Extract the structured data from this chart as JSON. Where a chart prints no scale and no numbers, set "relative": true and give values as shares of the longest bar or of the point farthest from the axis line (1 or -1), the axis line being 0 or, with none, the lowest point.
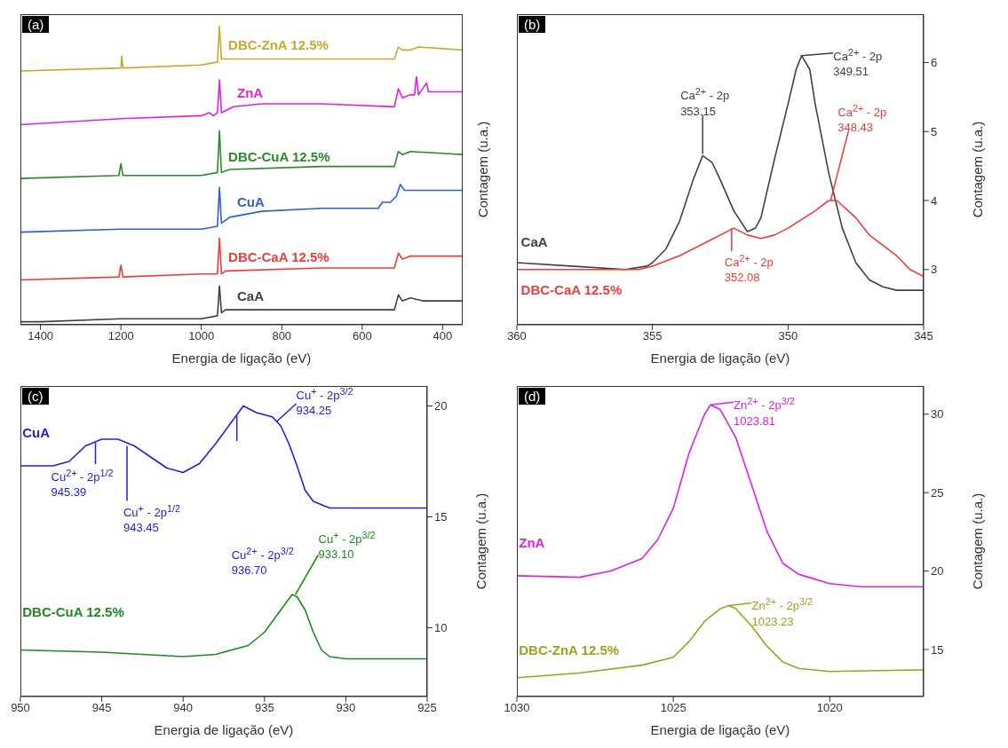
{
  "chart_data": [
    {
      "type": "line",
      "title": "(a)",
      "xlabel": "Energia de ligação (eV)",
      "ylabel": "Contagem (u.a.)",
      "relative": true,
      "xlim": [
        1450,
        350
      ],
      "xticks": [
        1400,
        1200,
        1000,
        800,
        600,
        400
      ],
      "series": [
        {
          "name": "CaA",
          "color": "#404040",
          "x": [
            1450,
            1400,
            1200,
            1000,
            960,
            955,
            950,
            940,
            700,
            520,
            510,
            500,
            480,
            450,
            350
          ],
          "values": [
            0.01,
            0.01,
            0.02,
            0.02,
            0.03,
            0.13,
            0.04,
            0.05,
            0.05,
            0.05,
            0.1,
            0.08,
            0.09,
            0.08,
            0.08
          ]
        },
        {
          "name": "DBC-CaA 12.5%",
          "color": "#ee3b3b",
          "x": [
            1450,
            1205,
            1200,
            1195,
            1000,
            960,
            955,
            950,
            940,
            700,
            520,
            510,
            500,
            480,
            350
          ],
          "values": [
            0.15,
            0.16,
            0.2,
            0.16,
            0.17,
            0.17,
            0.29,
            0.17,
            0.18,
            0.19,
            0.19,
            0.24,
            0.22,
            0.23,
            0.23
          ]
        },
        {
          "name": "CuA",
          "color": "#2a5fd8",
          "x": [
            1450,
            1200,
            1000,
            960,
            955,
            950,
            930,
            850,
            700,
            560,
            550,
            530,
            515,
            505,
            495,
            480,
            400,
            350
          ],
          "values": [
            0.31,
            0.32,
            0.32,
            0.33,
            0.46,
            0.34,
            0.36,
            0.38,
            0.39,
            0.39,
            0.41,
            0.41,
            0.43,
            0.47,
            0.45,
            0.45,
            0.45,
            0.45
          ]
        },
        {
          "name": "DBC-CuA 12.5%",
          "color": "#2a8a2a",
          "x": [
            1450,
            1205,
            1200,
            1195,
            1000,
            960,
            955,
            950,
            930,
            700,
            520,
            510,
            500,
            480,
            350
          ],
          "values": [
            0.49,
            0.5,
            0.54,
            0.5,
            0.5,
            0.51,
            0.65,
            0.51,
            0.52,
            0.53,
            0.53,
            0.58,
            0.57,
            0.58,
            0.57
          ]
        },
        {
          "name": "ZnA",
          "color": "#e020e0",
          "x": [
            1450,
            1200,
            1000,
            980,
            970,
            960,
            955,
            950,
            920,
            850,
            700,
            520,
            510,
            500,
            480,
            470,
            465,
            460,
            440,
            435,
            350
          ],
          "values": [
            0.67,
            0.69,
            0.7,
            0.71,
            0.7,
            0.71,
            0.82,
            0.71,
            0.73,
            0.74,
            0.74,
            0.73,
            0.79,
            0.76,
            0.77,
            0.77,
            0.83,
            0.77,
            0.81,
            0.78,
            0.78
          ]
        },
        {
          "name": "DBC-ZnA 12.5%",
          "color": "#c8a82a",
          "x": [
            1450,
            1200,
            1198,
            1195,
            1000,
            960,
            955,
            950,
            930,
            700,
            520,
            510,
            500,
            480,
            460,
            350
          ],
          "values": [
            0.85,
            0.86,
            0.9,
            0.86,
            0.87,
            0.88,
            1.0,
            0.89,
            0.89,
            0.89,
            0.89,
            0.93,
            0.92,
            0.92,
            0.93,
            0.92
          ]
        }
      ]
    },
    {
      "type": "line",
      "title": "(b)",
      "xlabel": "Energia de ligação (eV)",
      "ylabel": "Contagem (u.a.)",
      "xlim": [
        360,
        345
      ],
      "xticks": [
        360,
        355,
        350,
        345
      ],
      "ylim": [
        2.2,
        6.7
      ],
      "yticks": [
        3,
        4,
        5,
        6
      ],
      "series": [
        {
          "name": "CaA",
          "color": "#404040",
          "x": [
            360,
            358,
            356,
            355.2,
            355,
            354.5,
            354,
            353.5,
            353.15,
            352.8,
            352.5,
            352,
            351.5,
            351.2,
            351,
            350.5,
            350,
            349.7,
            349.5,
            349.2,
            349,
            348.5,
            348,
            347.5,
            347,
            346.5,
            346,
            345
          ],
          "values": [
            3.1,
            3.05,
            3.0,
            3.05,
            3.1,
            3.3,
            3.7,
            4.3,
            4.65,
            4.55,
            4.3,
            3.85,
            3.55,
            3.6,
            3.75,
            4.6,
            5.4,
            5.9,
            6.1,
            5.9,
            5.4,
            4.4,
            3.6,
            3.1,
            2.85,
            2.75,
            2.7,
            2.7
          ]
        },
        {
          "name": "DBC-CaA 12.5%",
          "color": "#ee3b3b",
          "x": [
            360,
            357,
            355.5,
            355,
            354,
            353,
            352,
            351.5,
            351,
            350.5,
            350,
            349,
            348.5,
            348.2,
            347.5,
            347,
            346,
            345.5,
            345
          ],
          "values": [
            3.0,
            3.0,
            3.0,
            3.05,
            3.2,
            3.4,
            3.6,
            3.5,
            3.45,
            3.5,
            3.6,
            3.85,
            4.0,
            4.0,
            3.75,
            3.5,
            3.2,
            3.0,
            2.9
          ]
        }
      ],
      "annotations": [
        {
          "text": "Ca$^{2+}$ - 2p\n349.51",
          "x": 349.51,
          "y": 6.1
        },
        {
          "text": "Ca$^{2+}$ - 2p\n353.15",
          "x": 353.15,
          "y": 4.65
        },
        {
          "text": "Ca$^{2+}$ - 2p\n348.43",
          "x": 348.43,
          "y": 4.0
        },
        {
          "text": "Ca$^{2+}$ - 2p\n352.08",
          "x": 352.08,
          "y": 3.6
        }
      ]
    },
    {
      "type": "line",
      "title": "(c)",
      "xlabel": "Energia de ligação (eV)",
      "ylabel": "Contagem (u.a.)",
      "xlim": [
        950,
        925
      ],
      "xticks": [
        950,
        945,
        940,
        935,
        930,
        925
      ],
      "ylim": [
        6.9,
        20.9
      ],
      "yticks": [
        10,
        15,
        20
      ],
      "series": [
        {
          "name": "CuA",
          "color": "#2020e0",
          "x": [
            950,
            948,
            947,
            946,
            945,
            944,
            943,
            942,
            941,
            940,
            939,
            938,
            937,
            936.3,
            935.5,
            934.5,
            934,
            933.5,
            933,
            932.5,
            932,
            931,
            930,
            925
          ],
          "values": [
            17.3,
            17.3,
            17.5,
            18.2,
            18.5,
            18.5,
            18.2,
            17.7,
            17.2,
            17.0,
            17.4,
            18.3,
            19.3,
            20.0,
            19.7,
            19.5,
            19.1,
            18.3,
            17.3,
            16.2,
            15.7,
            15.4,
            15.4,
            15.4
          ]
        },
        {
          "name": "DBC-CuA 12.5%",
          "color": "#1e8a1e",
          "x": [
            950,
            945,
            940,
            938,
            936,
            935,
            934,
            933.3,
            933,
            932.5,
            932,
            931.5,
            931,
            930,
            925
          ],
          "values": [
            9.0,
            8.9,
            8.7,
            8.8,
            9.2,
            9.8,
            10.8,
            11.5,
            11.4,
            10.8,
            9.8,
            9.0,
            8.7,
            8.6,
            8.6
          ]
        }
      ],
      "annotations": [
        {
          "text": "Cu$^{+}$ - 2p$^{3/2}$\n934.25",
          "x": 934.25,
          "y": 19.3
        },
        "Cu$^{2+}$ - 2p$^{1/2}$\n945.39",
        {
          "text": "Cu$^{+}$ - 2p$^{1/2}$\n943.45",
          "x": 943.45,
          "y": 18.2
        },
        "Cu$^{2+}$ - 2p$^{3/2}$\n936.70",
        {
          "text": "Cu$^{+}$ - 2p$^{3/2}$\n933.10",
          "x": 933.1,
          "y": 11.5
        }
      ]
    },
    {
      "type": "line",
      "title": "(d)",
      "xlabel": "Energia de ligação (eV)",
      "ylabel": "Contagem (u.a.)",
      "xlim": [
        1030,
        1017
      ],
      "xticks": [
        1030,
        1025,
        1020
      ],
      "ylim": [
        12,
        31.8
      ],
      "yticks": [
        15,
        20,
        25,
        30
      ],
      "series": [
        {
          "name": "ZnA",
          "color": "#e020e0",
          "x": [
            1030,
            1028,
            1027,
            1026,
            1025.5,
            1025,
            1024.5,
            1024,
            1023.81,
            1023.5,
            1023,
            1022.5,
            1022,
            1021.5,
            1021,
            1020,
            1019,
            1017
          ],
          "values": [
            19.7,
            19.6,
            20.0,
            20.8,
            22.0,
            24.0,
            27.5,
            30.0,
            30.6,
            30.3,
            28.5,
            25.5,
            22.5,
            20.5,
            19.8,
            19.2,
            19.0,
            19.0
          ]
        },
        {
          "name": "DBC-ZnA 12.5%",
          "color": "#a0a020",
          "x": [
            1030,
            1028,
            1026,
            1025,
            1024.5,
            1024,
            1023.5,
            1023.23,
            1023,
            1022.5,
            1022,
            1021.5,
            1021,
            1020,
            1017
          ],
          "values": [
            13.2,
            13.5,
            14.0,
            14.5,
            15.5,
            16.8,
            17.6,
            17.8,
            17.6,
            16.5,
            15.2,
            14.2,
            13.8,
            13.6,
            13.7
          ]
        }
      ],
      "annotations": [
        {
          "text": "Zn$^{2+}$ - 2p$^{3/2}$\n1023.81",
          "x": 1023.81,
          "y": 30.6
        },
        {
          "text": "Zn$^{2+}$ - 2p$^{3/2}$\n1023.23",
          "x": 1023.23,
          "y": 17.8
        }
      ]
    }
  ]
}
